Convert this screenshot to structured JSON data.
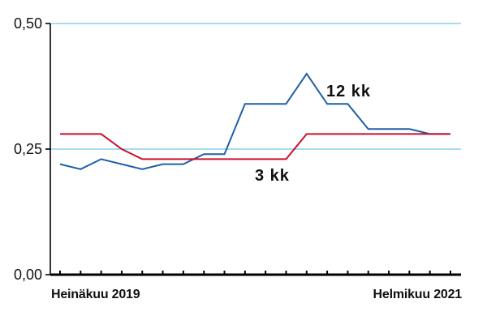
{
  "chart_data": {
    "type": "line",
    "x": [
      "2019-07",
      "2019-08",
      "2019-09",
      "2019-10",
      "2019-11",
      "2019-12",
      "2020-01",
      "2020-02",
      "2020-03",
      "2020-04",
      "2020-05",
      "2020-06",
      "2020-07",
      "2020-08",
      "2020-09",
      "2020-10",
      "2020-11",
      "2020-12",
      "2021-01",
      "2021-02"
    ],
    "x_tick_labels": [
      "Heinäkuu 2019",
      "Helmikuu 2021"
    ],
    "ylim": [
      0,
      0.5
    ],
    "y_ticks": [
      0,
      0.25,
      0.5
    ],
    "y_tick_labels": [
      "0,00",
      "0,25",
      "0,50"
    ],
    "grid": true,
    "series": [
      {
        "name": "12 kk",
        "color": "#1f5fa8",
        "values": [
          0.22,
          0.21,
          0.23,
          0.22,
          0.21,
          0.22,
          0.22,
          0.24,
          0.24,
          0.34,
          0.34,
          0.34,
          0.4,
          0.34,
          0.34,
          0.29,
          0.29,
          0.29,
          0.28,
          0.28
        ]
      },
      {
        "name": "3 kk",
        "color": "#c8102e",
        "values": [
          0.28,
          0.28,
          0.28,
          0.25,
          0.23,
          0.23,
          0.23,
          0.23,
          0.23,
          0.23,
          0.23,
          0.23,
          0.28,
          0.28,
          0.28,
          0.28,
          0.28,
          0.28,
          0.28,
          0.28
        ]
      }
    ],
    "gridline_color": "#6fc7ea",
    "axis_color": "#000000"
  }
}
